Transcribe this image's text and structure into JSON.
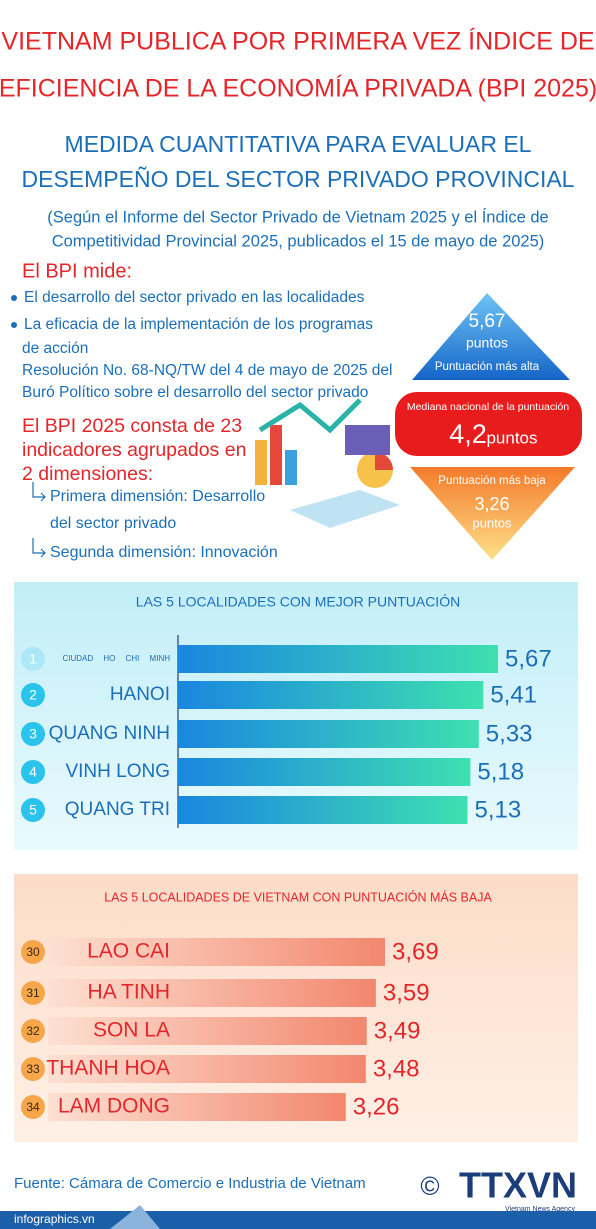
{
  "header": {
    "title": [
      "VIETNAM PUBLICA POR PRIMERA VEZ ÍNDICE DE",
      "EFICIENCIA DE LA ECONOMÍA PRIVADA (BPI 2025)"
    ],
    "subtitle": [
      "MEDIDA CUANTITATIVA PARA EVALUAR EL",
      "DESEMPEÑO DEL SECTOR PRIVADO PROVINCIAL"
    ],
    "note": [
      "(Según el Informe del Sector Privado de Vietnam 2025 y el Índice de",
      "Competitividad Provincial 2025, publicados el 15 de mayo de 2025)"
    ]
  },
  "measures": {
    "heading": "El BPI mide:",
    "items": [
      "El desarrollo del sector privado en las localidades",
      "La eficacia de la implementación de los programas",
      "de acción",
      "Resolución No. 68-NQ/TW del 4 de mayo de 2025 del",
      "Buró Político sobre el desarrollo del sector privado"
    ]
  },
  "structure": {
    "heading": [
      "El BPI 2025 consta de 23",
      "indicadores agrupados en",
      "2 dimensiones:"
    ],
    "items": [
      "Primera dimensión: Desarrollo",
      "del sector privado",
      "Segunda dimensión: Innovación"
    ]
  },
  "scores": {
    "highest": {
      "value": "5,67",
      "unit": "puntos",
      "label": "Puntuación más alta"
    },
    "median": {
      "label": "Mediana nacional de la puntuación",
      "value": "4,2",
      "unit": "puntos"
    },
    "lowest": {
      "label": "Puntuación más baja",
      "value": "3,26",
      "unit": "puntos"
    }
  },
  "chart_data": [
    {
      "type": "bar",
      "title": "LAS 5 LOCALIDADES CON MEJOR PUNTUACIÓN",
      "ranks": [
        1,
        2,
        3,
        4,
        5
      ],
      "categories": [
        "CIUDAD HO CHI MINH",
        "HANOI",
        "QUANG NINH",
        "VINH LONG",
        "QUANG TRI"
      ],
      "values": [
        5.67,
        5.41,
        5.33,
        5.18,
        5.13
      ],
      "value_labels": [
        "5,67",
        "5,41",
        "5,33",
        "5,18",
        "5,13"
      ],
      "color": "#1a86e0"
    },
    {
      "type": "bar",
      "title": "LAS 5 LOCALIDADES DE VIETNAM CON PUNTUACIÓN MÁS BAJA",
      "ranks": [
        30,
        31,
        32,
        33,
        34
      ],
      "categories": [
        "LAO CAI",
        "HA TINH",
        "SON LA",
        "THANH HOA",
        "LAM DONG"
      ],
      "values": [
        3.69,
        3.59,
        3.49,
        3.48,
        3.26
      ],
      "value_labels": [
        "3,69",
        "3,59",
        "3,49",
        "3,48",
        "3,26"
      ],
      "color": "#f2876e"
    }
  ],
  "footer": {
    "source": "Fuente: Cámara de Comercio e Industria de Vietnam",
    "copyright": "©",
    "logo": "TTXVN",
    "logo_sub": "Vietnam News Agency",
    "site": "infographics.vn"
  }
}
